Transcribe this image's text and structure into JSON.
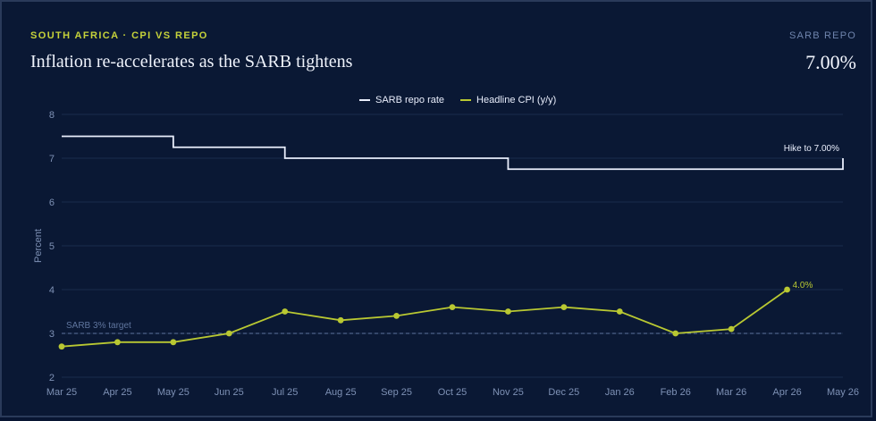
{
  "header": {
    "kicker": "SOUTH AFRICA · CPI VS REPO",
    "title": "Inflation re-accelerates as the SARB tightens",
    "metric_label": "SARB REPO",
    "metric_value": "7.00%"
  },
  "colors": {
    "repo": "#e9eefc",
    "cpi": "#b9c832",
    "grid": "#1b2c4d",
    "target": "#5f759e",
    "axis_text": "#7e91b5"
  },
  "chart_data": {
    "type": "line",
    "title": "Inflation re-accelerates as the SARB tightens",
    "xlabel": "",
    "ylabel": "Percent",
    "ylim": [
      2,
      8
    ],
    "yticks": [
      2,
      3,
      4,
      5,
      6,
      7,
      8
    ],
    "categories": [
      "Mar 25",
      "Apr 25",
      "May 25",
      "Jun 25",
      "Jul 25",
      "Aug 25",
      "Sep 25",
      "Oct 25",
      "Nov 25",
      "Dec 25",
      "Jan 26",
      "Feb 26",
      "Mar 26",
      "Apr 26",
      "May 26"
    ],
    "legend_position": "top-center",
    "grid": true,
    "series": [
      {
        "name": "SARB repo rate",
        "kind": "step",
        "values": [
          7.5,
          7.5,
          7.25,
          7.25,
          7.0,
          7.0,
          7.0,
          7.0,
          6.75,
          6.75,
          6.75,
          6.75,
          6.75,
          6.75,
          7.0
        ]
      },
      {
        "name": "Headline CPI (y/y)",
        "kind": "line",
        "values": [
          2.7,
          2.8,
          2.8,
          3.0,
          3.5,
          3.3,
          3.4,
          3.6,
          3.5,
          3.6,
          3.5,
          3.0,
          3.1,
          4.0,
          null
        ]
      }
    ],
    "annotations": {
      "target_value": 3,
      "target_label": "SARB 3% target",
      "repo_callout": "Hike to 7.00%",
      "cpi_callout": "4.0%"
    }
  }
}
